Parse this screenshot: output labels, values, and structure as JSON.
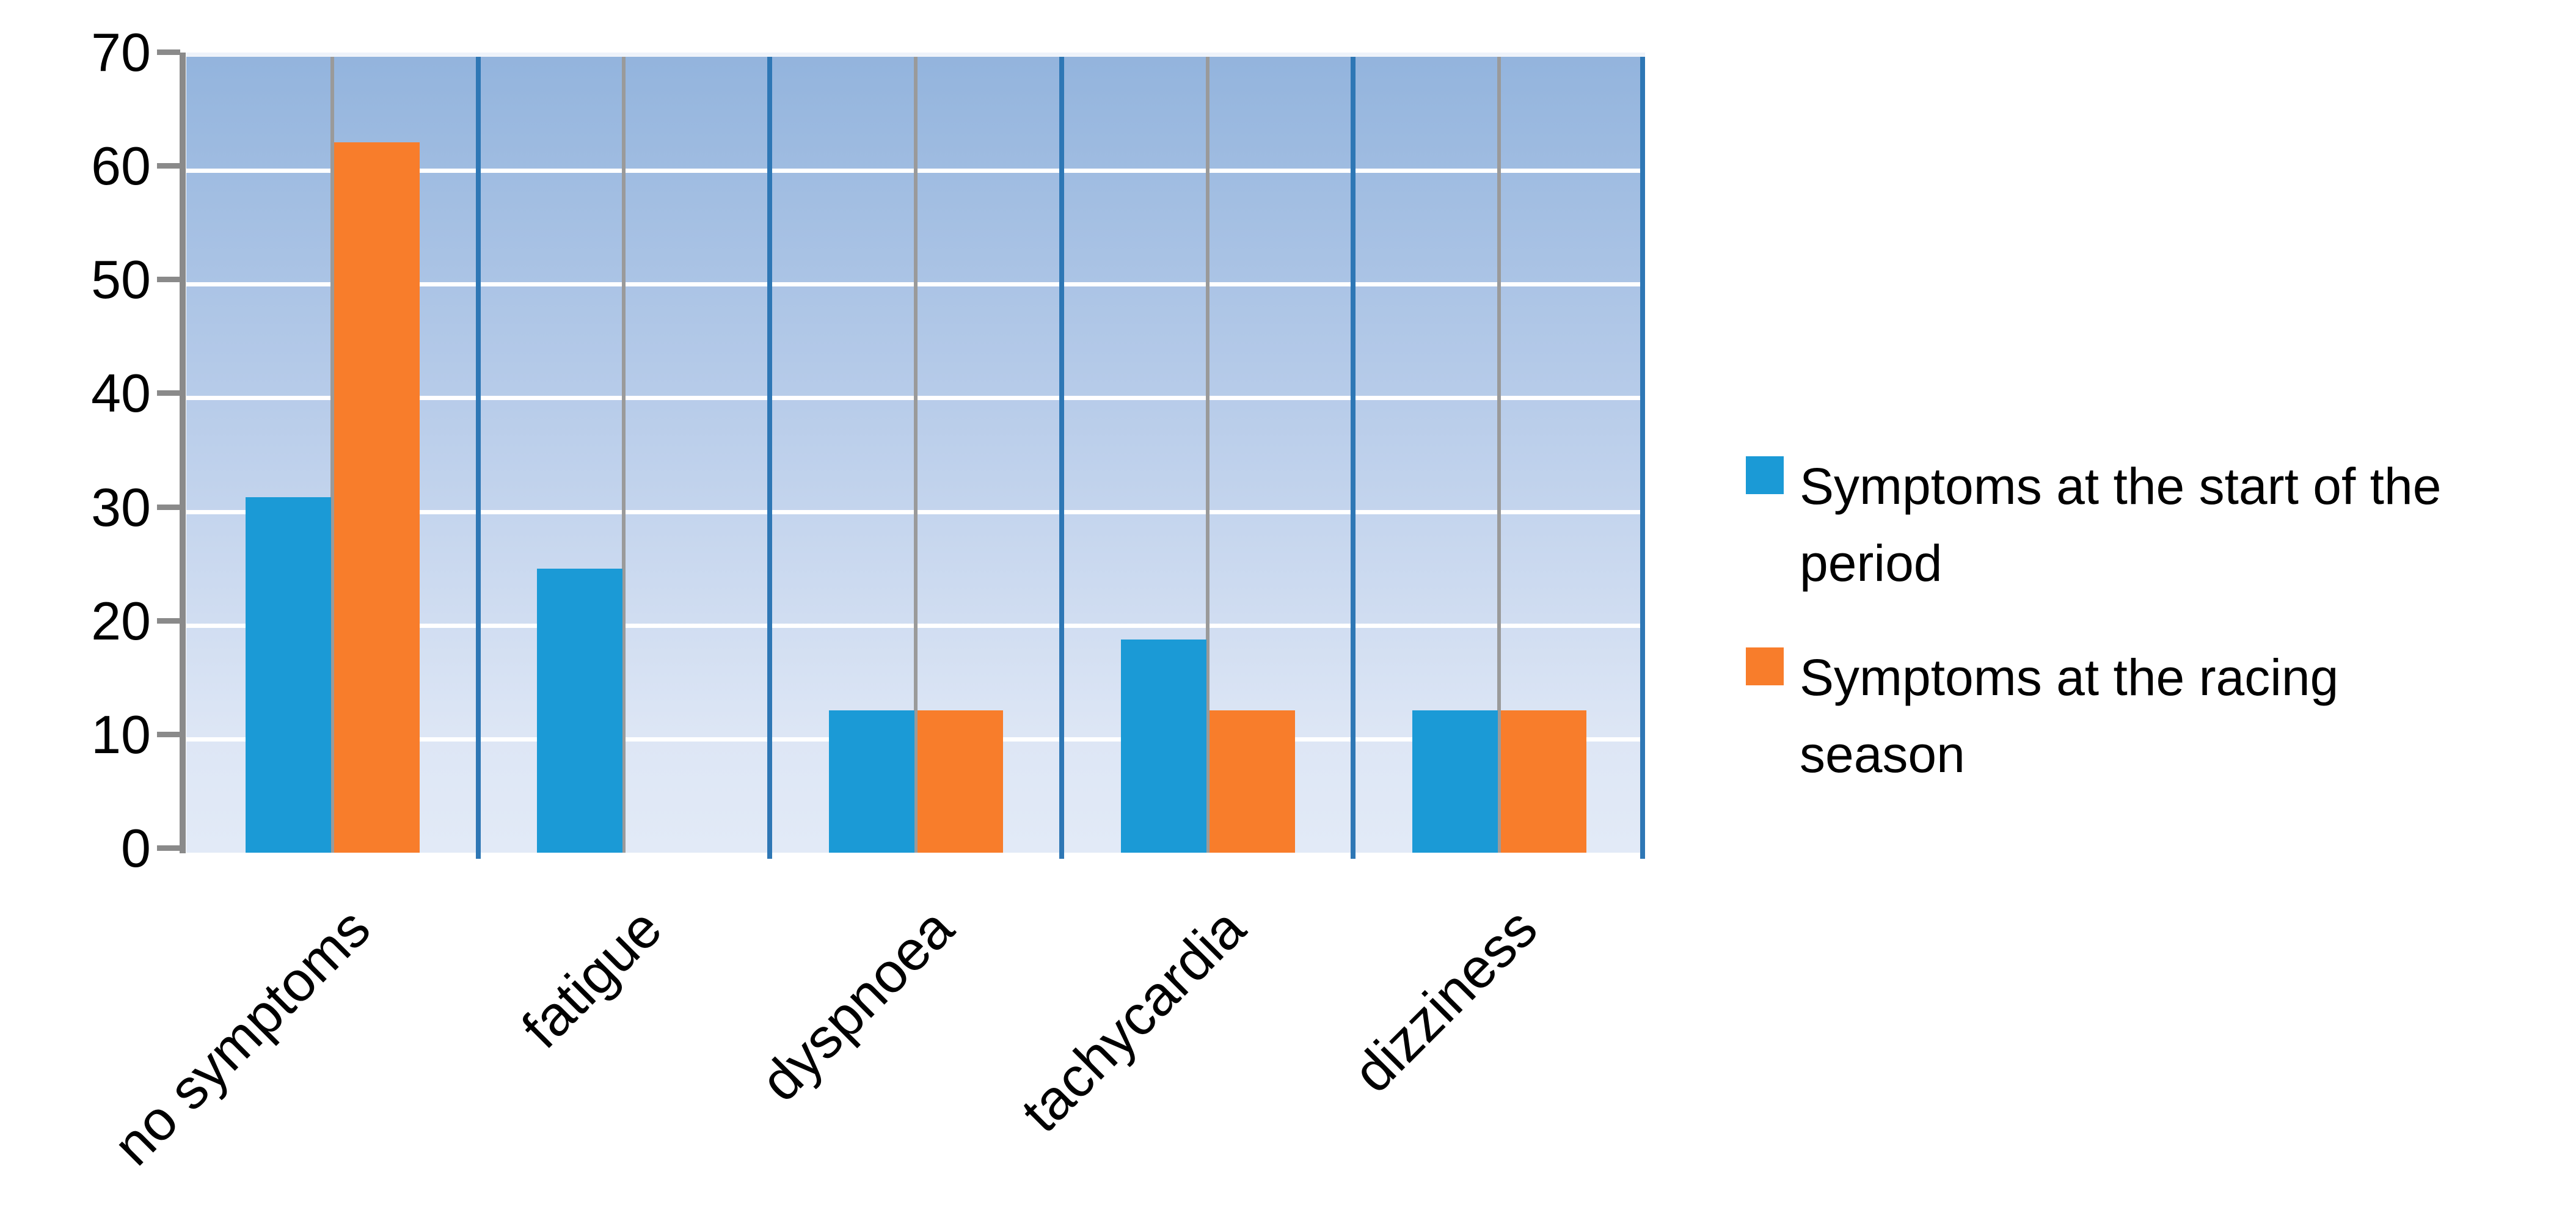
{
  "chart_data": {
    "type": "bar",
    "title": "",
    "xlabel": "",
    "ylabel": "",
    "categories": [
      "no symptoms",
      "fatigue",
      "dyspnoea",
      "tachycardia",
      "dizziness"
    ],
    "series": [
      {
        "name": "Symptoms at the start of the period",
        "color": "#1b9ad6",
        "values": [
          31.25,
          25,
          12.5,
          18.75,
          12.5
        ]
      },
      {
        "name": "Symptoms at the racing season",
        "color": "#f87d2b",
        "values": [
          62.5,
          0,
          12.5,
          12.5,
          12.5
        ]
      }
    ],
    "ylim": [
      0,
      70
    ],
    "y_ticks": [
      "0",
      "10",
      "20",
      "30",
      "40",
      "50",
      "60",
      "70"
    ],
    "grid": {
      "horizontal_gridlines": "white, every 10 units",
      "vertical_mid_category_lines": "gray",
      "vertical_category_boundary_lines": "blue"
    },
    "legend_position": "right",
    "plot_background": "vertical blue gradient, light at bottom"
  },
  "legend": {
    "entries": [
      {
        "lines": [
          "Symptoms at the start of the",
          "period"
        ],
        "color": "#1b9ad6"
      },
      {
        "lines": [
          "Symptoms at the racing",
          "season"
        ],
        "color": "#f87d2b"
      }
    ]
  },
  "colors": {
    "series1_blue": "#1b9ad6",
    "series2_orange": "#f87d2b",
    "plot_gradient_top": "#93b4dd",
    "plot_gradient_bottom": "#e2eaf7",
    "h_gridline": "#ffffff",
    "mid_category_line": "#9a9a9a",
    "boundary_line": "#2e77b5",
    "axis": "#8a8a8a",
    "text": "#000000",
    "page_background": "#ffffff"
  }
}
